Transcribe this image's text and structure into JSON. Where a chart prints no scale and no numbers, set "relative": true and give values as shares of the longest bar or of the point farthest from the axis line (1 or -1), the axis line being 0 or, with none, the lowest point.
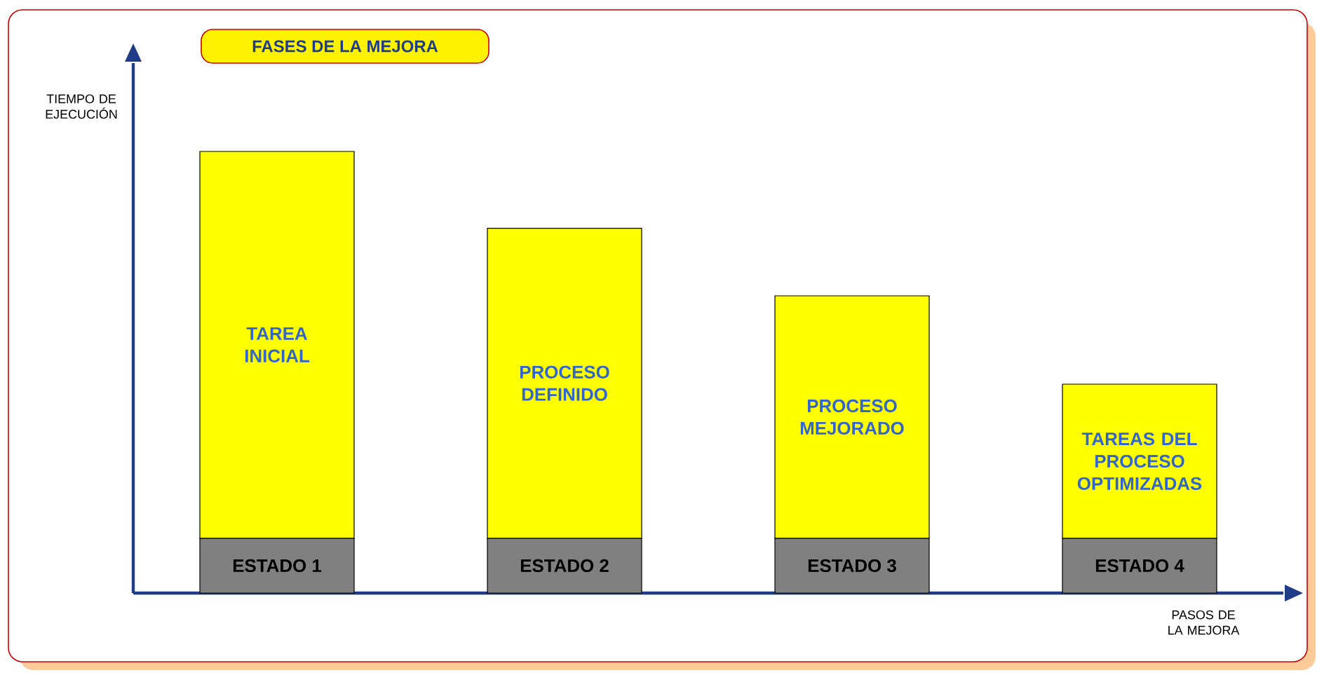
{
  "chart_data": {
    "type": "bar",
    "title": "FASES DE LA MEJORA",
    "xlabel": "PASOS DE LA MEJORA",
    "ylabel": "TIEMPO DE EJECUCIÓN",
    "relative": true,
    "stacked": true,
    "categories": [
      "ESTADO 1",
      "ESTADO 2",
      "ESTADO 3",
      "ESTADO 4"
    ],
    "series": [
      {
        "color": "#808080",
        "values": [
          0.124,
          0.124,
          0.124,
          0.124
        ]
      },
      {
        "color": "#ffff00",
        "values": [
          0.876,
          0.702,
          0.549,
          0.349
        ]
      }
    ],
    "annotations": [
      "TAREA INICIAL",
      "PROCESO DEFINIDO",
      "PROCESO MEJORADO",
      "TAREAS DEL PROCESO OPTIMIZADAS"
    ]
  }
}
